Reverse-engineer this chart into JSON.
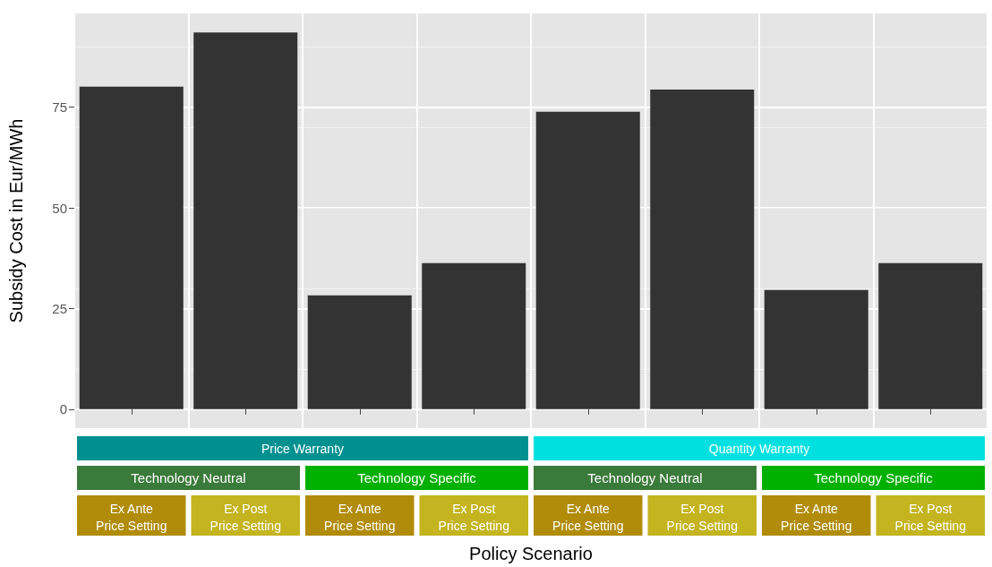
{
  "chart_data": {
    "type": "bar",
    "xlabel": "Policy Scenario",
    "ylabel": "Subsidy Cost in Eur/MWh",
    "categories": [
      "Ex Ante\nPrice Setting",
      "Ex Post\nPrice Setting",
      "Ex Ante\nPrice Setting",
      "Ex Post\nPrice Setting",
      "Ex Ante\nPrice Setting",
      "Ex Post\nPrice Setting",
      "Ex Ante\nPrice Setting",
      "Ex Post\nPrice Setting"
    ],
    "values": [
      80.1,
      93.6,
      28.3,
      36.3,
      73.9,
      79.4,
      29.6,
      36.3
    ],
    "color": "#333333",
    "ylim": [
      -4.7,
      98.3
    ],
    "yticks": [
      0,
      25,
      50,
      75
    ],
    "grid": true,
    "annotations": [
      "Price Warranty",
      "Quantity Warranty",
      "Technology Neutral",
      "Technology Specific",
      "Technology Neutral",
      "Technology Specific"
    ]
  }
}
